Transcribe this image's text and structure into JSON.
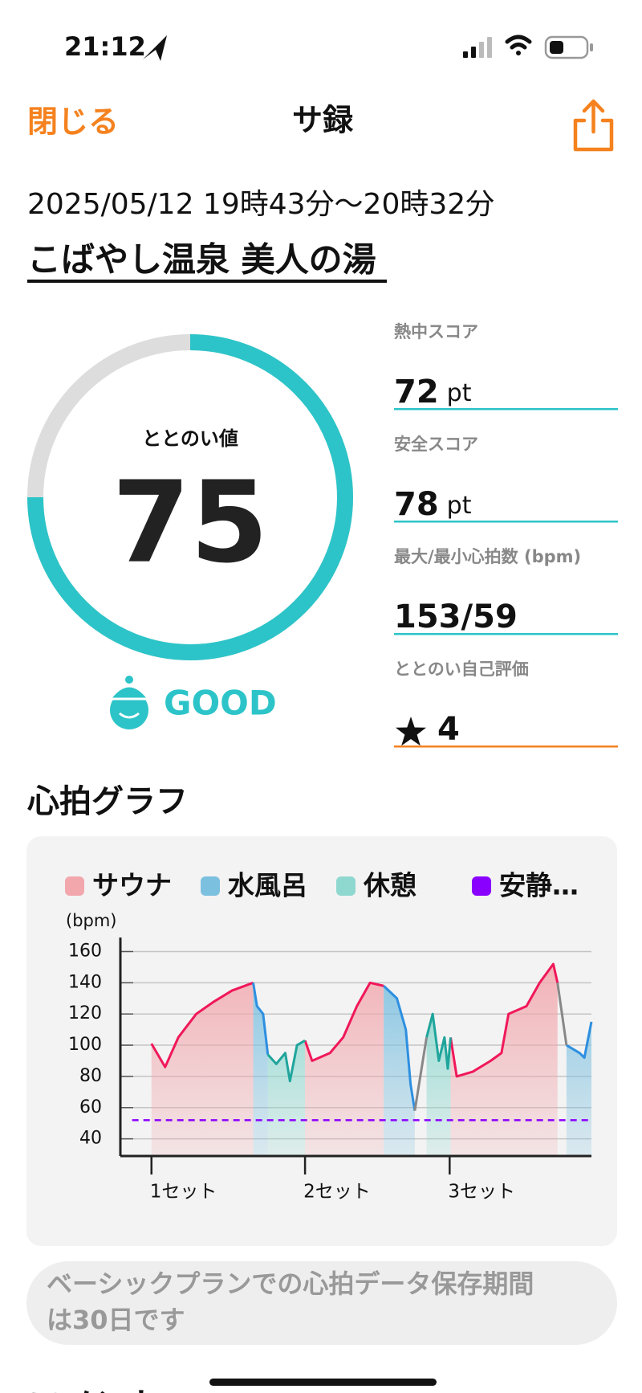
{
  "status_bar": {
    "time": "21:12"
  },
  "nav": {
    "close": "閉じる",
    "title": "サ録"
  },
  "session": {
    "datetime": "2025/05/12 19時43分〜20時32分",
    "place": "こばやし温泉 美人の湯"
  },
  "score": {
    "label": "ととのい値",
    "value": 75,
    "range": [
      0,
      100
    ],
    "rating": "GOOD",
    "color": "#2cc4c8"
  },
  "stats": [
    {
      "label": "熱中スコア",
      "value": 72,
      "unit": "pt",
      "line_color": "#2cc4c8"
    },
    {
      "label": "安全スコア",
      "value": 78,
      "unit": "pt",
      "line_color": "#2cc4c8"
    },
    {
      "label": "最大/最小心拍数 (bpm)",
      "value": "153/59",
      "line_color": "#2cc4c8"
    },
    {
      "label": "ととのい自己評価",
      "value": 4,
      "line_color": "#f5821f"
    }
  ],
  "section_title": "心拍グラフ",
  "chart_data": {
    "type": "line",
    "y_label": "(bpm)",
    "xlim": [
      0,
      100
    ],
    "xticks": [
      {
        "value": 6.6,
        "label": "1セット"
      },
      {
        "value": 39.2,
        "label": "2セット"
      },
      {
        "value": 69.9,
        "label": "3セット"
      }
    ],
    "ylim": [
      29,
      169
    ],
    "yticks": [
      40,
      60,
      80,
      100,
      120,
      140,
      160
    ],
    "grid": true,
    "series": [
      {
        "name": "サウナ",
        "color": "#f0185a",
        "fill": "#f2a7ad",
        "x": [
          6.6,
          9.5,
          12.3,
          16.1,
          19.9,
          23.7,
          28.2,
          null,
          39.2,
          40.7,
          44.5,
          47.3,
          50.2,
          53.0,
          55.9,
          null,
          70.1,
          71.4,
          74.8,
          78.6,
          80.9,
          82.4,
          86.2,
          89.0,
          91.9,
          92.8
        ],
        "values": [
          101,
          86,
          105,
          120,
          128,
          135,
          140,
          null,
          103,
          90,
          95,
          105,
          125,
          140,
          138,
          null,
          105,
          80,
          83,
          90,
          95,
          120,
          125,
          140,
          152,
          140
        ]
      },
      {
        "name": "水風呂",
        "color": "#2e8fe0",
        "fill": "#7cc0e0",
        "x": [
          28.2,
          29.0,
          30.3,
          31.3,
          null,
          55.9,
          58.7,
          60.6,
          61.6,
          62.5,
          null,
          94.7,
          97.5,
          98.5,
          100
        ],
        "values": [
          140,
          125,
          120,
          94,
          null,
          138,
          130,
          110,
          75,
          58,
          null,
          100,
          95,
          92,
          115
        ]
      },
      {
        "name": "休憩",
        "color": "#1fa59c",
        "fill": "#8fd8cf",
        "x": [
          31.3,
          33.1,
          35.0,
          36.0,
          37.5,
          39.2,
          null,
          65.0,
          66.3,
          67.6,
          68.8,
          69.5,
          70.1
        ],
        "values": [
          94,
          88,
          95,
          77,
          100,
          103,
          null,
          105,
          120,
          90,
          105,
          85,
          105
        ]
      },
      {
        "color": "#888888",
        "x": [
          62.5,
          65.0,
          null,
          92.8,
          94.7
        ],
        "values": [
          58,
          105,
          null,
          140,
          100
        ]
      },
      {
        "name": "安静…",
        "color": "#8a00ff",
        "dash": true,
        "x": [
          2.5,
          100
        ],
        "values": [
          52,
          52
        ]
      }
    ]
  },
  "notice": [
    "ベーシックプランでの心拍データ保存期間",
    "は30日です"
  ],
  "next_section": "コメント"
}
